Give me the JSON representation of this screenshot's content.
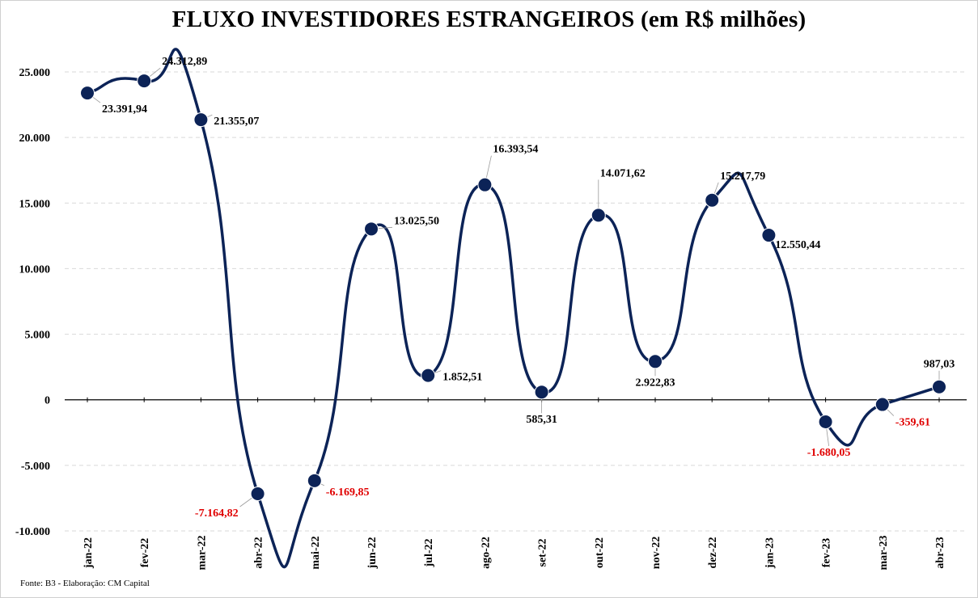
{
  "title": "FLUXO INVESTIDORES ESTRANGEIROS (em R$ milhões)",
  "source": "Fonte: B3 - Elaboração: CM Capital",
  "colors": {
    "line": "#0c2357",
    "marker": "#0c2357",
    "positive_label": "#000000",
    "negative_label": "#e00000",
    "grid": "#d9d9d9"
  },
  "chart_data": {
    "type": "line",
    "title": "FLUXO INVESTIDORES ESTRANGEIROS (em R$ milhões)",
    "xlabel": "",
    "ylabel": "",
    "ylim": [
      -10000,
      25000
    ],
    "yticks": [
      25000,
      20000,
      15000,
      10000,
      5000,
      0,
      -5000,
      -10000
    ],
    "ytick_labels": [
      "25.000",
      "20.000",
      "15.000",
      "10.000",
      "5.000",
      "0",
      "-5.000",
      "-10.000"
    ],
    "grid": true,
    "smooth": true,
    "categories": [
      "jan-22",
      "fev-22",
      "mar-22",
      "abr-22",
      "mai-22",
      "jun-22",
      "jul-22",
      "ago-22",
      "set-22",
      "out-22",
      "nov-22",
      "dez-22",
      "jan-23",
      "fev-23",
      "mar-23",
      "abr-23"
    ],
    "values": [
      23391.94,
      24312.89,
      21355.07,
      -7164.82,
      -6169.85,
      13025.5,
      1852.51,
      16393.54,
      585.31,
      14071.62,
      2922.83,
      15217.79,
      12550.44,
      -1680.05,
      -359.61,
      987.03
    ],
    "value_labels": [
      "23.391,94",
      "24.312,89",
      "21.355,07",
      "-7.164,82",
      "-6.169,85",
      "13.025,50",
      "1.852,51",
      "16.393,54",
      "585,31",
      "14.071,62",
      "2.922,83",
      "15.217,79",
      "12.550,44",
      "-1.680,05",
      "-359,61",
      "987,03"
    ]
  }
}
